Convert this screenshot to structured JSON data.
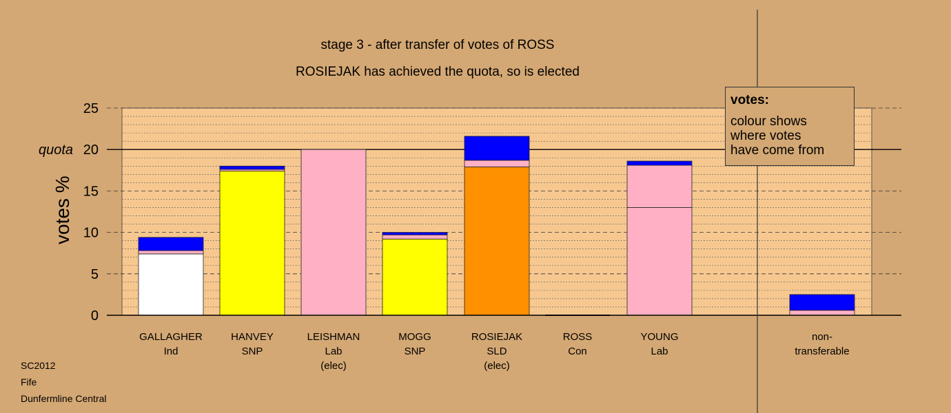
{
  "title": "stage 3 - after transfer of votes of ROSS",
  "subtitle": "ROSIEJAK has achieved the quota, so is elected",
  "legend": {
    "title": "votes:",
    "text": "colour shows\nwhere votes\nhave come from"
  },
  "footer": [
    "SC2012",
    "Fife",
    "Dunfermline Central"
  ],
  "colors": {
    "background": "#d4a874",
    "plot_fill": "#f6c890",
    "Ind": "#ffffff",
    "SNP": "#ffff00",
    "Lab": "#ffb0c4",
    "SLD": "#ff9000",
    "Con": "#0000ff"
  },
  "chart_data": {
    "type": "bar",
    "stacked": true,
    "ylabel": "votes %",
    "ylim": [
      0,
      25
    ],
    "yticks": [
      "0",
      "5",
      "10",
      "15",
      "20",
      "25"
    ],
    "quota": 20,
    "quota_label": "quota",
    "grid": true,
    "categories": [
      {
        "lines": [
          "GALLAGHER",
          "Ind"
        ],
        "segments": [
          {
            "party": "Ind",
            "value": 7.4
          },
          {
            "party": "Lab",
            "value": 0.4
          },
          {
            "party": "Con",
            "value": 1.6
          }
        ]
      },
      {
        "lines": [
          "HANVEY",
          "SNP"
        ],
        "segments": [
          {
            "party": "SNP",
            "value": 17.4
          },
          {
            "party": "Lab",
            "value": 0.2
          },
          {
            "party": "Con",
            "value": 0.4
          }
        ]
      },
      {
        "lines": [
          "LEISHMAN",
          "Lab",
          "(elec)"
        ],
        "segments": [
          {
            "party": "Lab",
            "value": 20.0
          }
        ]
      },
      {
        "lines": [
          "MOGG",
          "SNP"
        ],
        "segments": [
          {
            "party": "SNP",
            "value": 9.2
          },
          {
            "party": "Lab",
            "value": 0.5
          },
          {
            "party": "Con",
            "value": 0.3
          }
        ]
      },
      {
        "lines": [
          "ROSIEJAK",
          "SLD",
          "(elec)"
        ],
        "segments": [
          {
            "party": "SLD",
            "value": 17.9
          },
          {
            "party": "Lab",
            "value": 0.8
          },
          {
            "party": "Con",
            "value": 2.9
          }
        ]
      },
      {
        "lines": [
          "ROSS",
          "Con"
        ],
        "segments": []
      },
      {
        "lines": [
          "YOUNG",
          "Lab"
        ],
        "segments": [
          {
            "party": "Lab",
            "value": 13.0
          },
          {
            "party": "Lab",
            "value": 5.1
          },
          {
            "party": "Con",
            "value": 0.5
          }
        ]
      },
      {
        "lines": [
          "non-",
          "transferable"
        ],
        "segments": [
          {
            "party": "Lab",
            "value": 0.6
          },
          {
            "party": "Con",
            "value": 1.9
          }
        ]
      }
    ]
  }
}
